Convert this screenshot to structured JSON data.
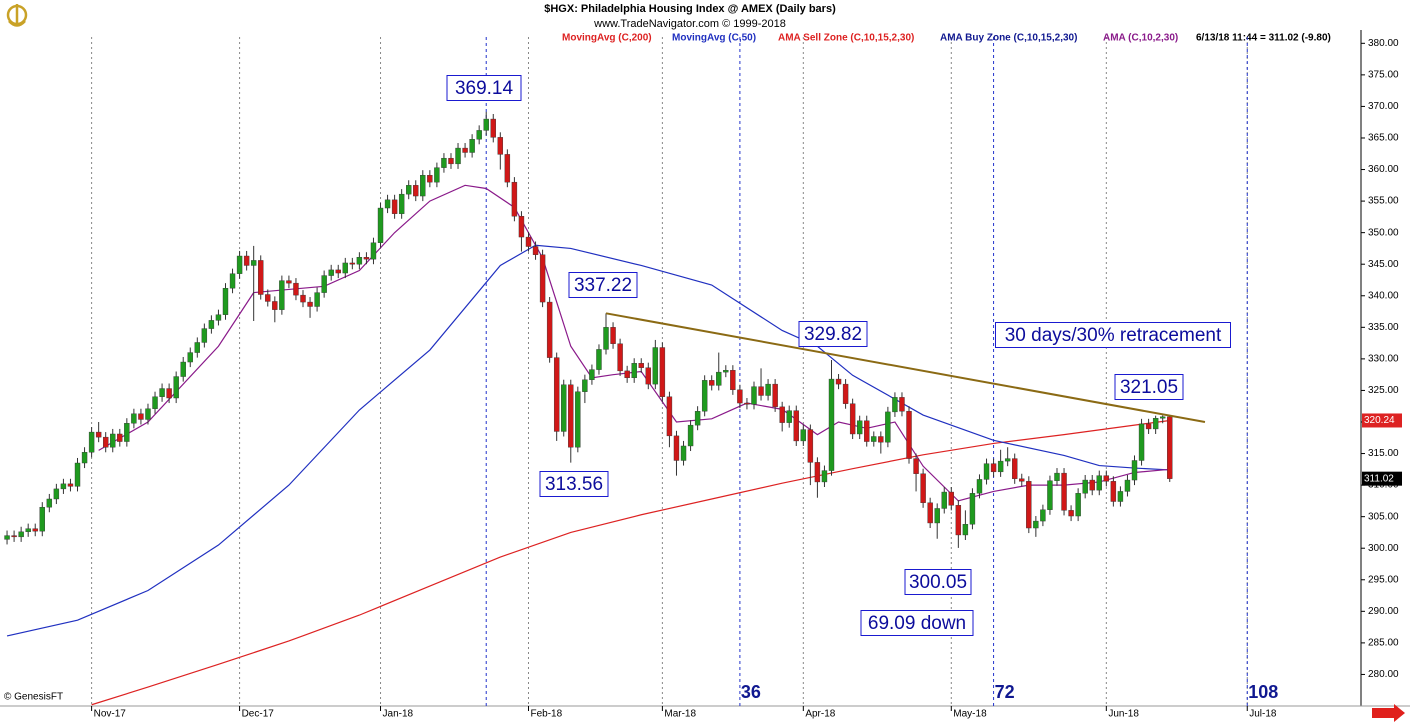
{
  "chart_data": {
    "type": "candlestick",
    "title": "$HGX:  Philadelphia Housing Index @ AMEX  (Daily bars)",
    "subtitle": "www.TradeNavigator.com © 1999-2018",
    "quote": "6/13/18 11:44 = 311.02 (-9.80)",
    "credit": "© GenesisFT",
    "up_color": "#1f9a1f",
    "down_color": "#d01818",
    "open": [
      301.4,
      302.0,
      301.8,
      302.6,
      303.1,
      302.7,
      306.5,
      307.8,
      309.4,
      310.2,
      309.8,
      313.5,
      315.2,
      318.4,
      317.6,
      316.0,
      318.1,
      316.9,
      319.8,
      321.3,
      320.4,
      322.1,
      324.0,
      325.3,
      323.8,
      327.2,
      329.5,
      331.0,
      332.6,
      334.8,
      336.1,
      337.0,
      341.2,
      343.5,
      346.3,
      344.8,
      345.6,
      340.2,
      339.1,
      337.8,
      342.4,
      342.0,
      340.1,
      339.0,
      338.3,
      340.5,
      343.2,
      344.1,
      343.6,
      345.2,
      345.0,
      346.1,
      345.8,
      348.4,
      353.9,
      355.2,
      353.0,
      356.1,
      357.5,
      355.8,
      359.1,
      358.0,
      360.3,
      361.8,
      360.9,
      363.4,
      362.7,
      364.8,
      366.2,
      368.0,
      365.1,
      362.4,
      358.0,
      352.6,
      349.3,
      347.8,
      346.5,
      339.0,
      330.2,
      318.5,
      325.9,
      316.0,
      324.8,
      326.7,
      328.3,
      331.5,
      335.0,
      332.4,
      328.1,
      327.0,
      329.3,
      328.6,
      326.0,
      331.8,
      324.0,
      317.8,
      313.9,
      316.2,
      319.5,
      321.7,
      326.6,
      325.8,
      327.9,
      328.2,
      325.1,
      323.0,
      322.8,
      325.6,
      324.2,
      326.0,
      322.4,
      319.9,
      321.8,
      317.0,
      318.8,
      313.6,
      310.5,
      312.3,
      326.8,
      326.0,
      322.9,
      318.1,
      320.2,
      316.9,
      317.7,
      316.8,
      321.6,
      323.9,
      321.7,
      314.2,
      311.8,
      307.2,
      304.0,
      306.3,
      308.9,
      306.8,
      302.1,
      303.8,
      308.7,
      310.9,
      313.4,
      312.1,
      313.8,
      314.2,
      311.0,
      310.6,
      303.2,
      304.3,
      306.1,
      310.7,
      311.9,
      306.0,
      305.1,
      308.7,
      310.8,
      309.2,
      311.5,
      310.6,
      307.4,
      309.0,
      310.8,
      313.9,
      319.7,
      318.9,
      320.6,
      320.82
    ],
    "high": [
      302.8,
      302.8,
      303.4,
      303.9,
      303.9,
      307.3,
      308.6,
      310.2,
      311.0,
      311.0,
      314.3,
      316.0,
      319.2,
      320.0,
      318.4,
      318.9,
      318.9,
      320.6,
      322.1,
      322.1,
      322.9,
      324.8,
      326.1,
      326.1,
      328.0,
      330.3,
      331.8,
      333.4,
      335.6,
      336.9,
      337.8,
      342.0,
      344.3,
      347.1,
      347.1,
      347.9,
      346.4,
      341.0,
      339.9,
      343.2,
      343.2,
      342.8,
      340.9,
      339.8,
      341.3,
      344.0,
      344.9,
      344.9,
      346.0,
      346.0,
      346.9,
      346.9,
      349.2,
      354.7,
      356.0,
      356.0,
      356.9,
      358.3,
      358.3,
      359.9,
      359.9,
      361.1,
      362.6,
      362.6,
      364.2,
      364.2,
      365.6,
      367.0,
      369.14,
      368.8,
      365.9,
      363.2,
      358.8,
      353.4,
      350.1,
      348.6,
      347.3,
      339.8,
      331.0,
      326.7,
      326.7,
      325.6,
      327.5,
      329.1,
      332.3,
      337.22,
      335.8,
      333.2,
      328.9,
      330.1,
      330.1,
      329.4,
      333.0,
      332.6,
      324.8,
      318.6,
      317.0,
      320.3,
      322.5,
      327.4,
      327.4,
      331.0,
      329.0,
      329.0,
      325.9,
      323.8,
      326.4,
      328.5,
      326.8,
      326.8,
      323.2,
      322.6,
      322.6,
      319.6,
      319.6,
      314.4,
      313.1,
      329.82,
      327.6,
      326.8,
      323.7,
      321.0,
      321.0,
      318.5,
      318.5,
      322.4,
      324.7,
      324.7,
      322.5,
      315.0,
      312.6,
      308.0,
      307.1,
      309.7,
      309.7,
      307.6,
      306.0,
      309.5,
      311.7,
      314.2,
      314.2,
      315.6,
      316.0,
      315.0,
      311.8,
      311.4,
      305.1,
      306.9,
      311.5,
      312.7,
      312.7,
      306.8,
      309.5,
      311.6,
      311.6,
      312.3,
      312.3,
      311.4,
      309.8,
      311.6,
      314.7,
      320.5,
      320.5,
      321.0,
      321.05,
      320.9
    ],
    "low": [
      300.6,
      301.0,
      301.0,
      301.8,
      301.9,
      301.9,
      305.7,
      307.0,
      308.6,
      309.0,
      309.0,
      312.7,
      314.4,
      316.8,
      315.2,
      315.2,
      316.1,
      316.1,
      319.0,
      319.6,
      319.6,
      321.3,
      323.2,
      323.0,
      323.0,
      326.4,
      328.7,
      330.2,
      331.8,
      334.0,
      335.3,
      336.2,
      340.4,
      342.7,
      344.0,
      336.0,
      339.4,
      338.3,
      335.8,
      337.0,
      341.2,
      339.3,
      338.2,
      336.5,
      337.5,
      339.7,
      342.4,
      342.8,
      342.8,
      344.2,
      344.2,
      345.0,
      345.0,
      347.6,
      353.1,
      352.2,
      352.2,
      355.3,
      355.0,
      355.0,
      357.2,
      357.2,
      359.5,
      360.1,
      360.1,
      361.9,
      361.9,
      364.0,
      365.4,
      364.3,
      360.0,
      357.2,
      351.8,
      347.0,
      347.0,
      345.7,
      338.2,
      329.4,
      317.0,
      317.7,
      313.56,
      315.2,
      323.0,
      325.9,
      327.5,
      330.7,
      331.6,
      327.3,
      326.2,
      326.2,
      327.8,
      325.2,
      325.2,
      323.2,
      316.0,
      311.5,
      313.1,
      315.4,
      318.7,
      320.9,
      325.0,
      325.0,
      327.1,
      324.3,
      322.2,
      322.0,
      322.0,
      323.4,
      323.4,
      321.6,
      318.5,
      319.1,
      316.2,
      316.2,
      310.0,
      308.0,
      309.7,
      311.5,
      325.2,
      322.1,
      317.3,
      317.3,
      316.1,
      316.1,
      315.0,
      316.0,
      320.8,
      320.9,
      313.4,
      309.0,
      306.4,
      303.2,
      301.5,
      305.5,
      306.0,
      300.05,
      301.3,
      303.0,
      307.9,
      310.1,
      311.3,
      311.3,
      313.0,
      310.2,
      309.8,
      302.4,
      301.8,
      303.5,
      305.3,
      309.9,
      305.2,
      304.3,
      304.3,
      307.9,
      308.4,
      308.4,
      309.8,
      306.6,
      306.6,
      308.2,
      310.0,
      313.1,
      318.1,
      318.1,
      319.8,
      310.5
    ],
    "close": [
      302.0,
      301.8,
      302.6,
      303.1,
      302.7,
      306.5,
      307.8,
      309.4,
      310.2,
      309.8,
      313.5,
      315.2,
      318.4,
      317.6,
      316.0,
      318.1,
      316.9,
      319.8,
      321.3,
      320.4,
      322.1,
      324.0,
      325.3,
      323.8,
      327.2,
      329.5,
      331.0,
      332.6,
      334.8,
      336.1,
      337.0,
      341.2,
      343.5,
      346.3,
      344.8,
      345.6,
      340.2,
      339.1,
      337.8,
      342.4,
      342.0,
      340.1,
      339.0,
      338.3,
      340.5,
      343.2,
      344.1,
      343.6,
      345.2,
      345.0,
      346.1,
      345.8,
      348.4,
      353.9,
      355.2,
      353.0,
      356.1,
      357.5,
      355.8,
      359.1,
      358.0,
      360.3,
      361.8,
      360.9,
      363.4,
      362.7,
      364.8,
      366.2,
      368.0,
      365.1,
      362.4,
      358.0,
      352.6,
      349.3,
      347.8,
      346.5,
      339.0,
      330.2,
      318.5,
      325.9,
      316.0,
      324.8,
      326.7,
      328.3,
      331.5,
      335.0,
      332.4,
      328.1,
      327.0,
      329.3,
      328.6,
      326.0,
      331.8,
      324.0,
      317.8,
      313.9,
      316.2,
      319.5,
      321.7,
      326.6,
      325.8,
      327.9,
      328.2,
      325.1,
      323.0,
      322.8,
      325.6,
      324.2,
      326.0,
      322.4,
      319.9,
      321.8,
      317.0,
      318.8,
      313.6,
      310.5,
      312.3,
      326.8,
      326.0,
      322.9,
      318.1,
      320.2,
      316.9,
      317.7,
      316.8,
      321.6,
      323.9,
      321.7,
      314.2,
      311.8,
      307.2,
      304.0,
      306.3,
      308.9,
      306.8,
      302.1,
      303.8,
      308.7,
      310.9,
      313.4,
      312.1,
      313.8,
      314.2,
      311.0,
      310.6,
      303.2,
      304.3,
      306.1,
      310.7,
      311.9,
      306.0,
      305.1,
      308.7,
      310.8,
      309.2,
      311.5,
      310.6,
      307.4,
      309.0,
      310.8,
      313.9,
      319.7,
      318.9,
      320.6,
      320.82,
      311.02
    ],
    "series": [
      {
        "name": "MovingAvg (C,200)",
        "color": "#dd2222",
        "x": [
          12,
          20,
          30,
          40,
          50,
          60,
          70,
          80,
          90,
          100,
          110,
          120,
          130,
          140,
          150,
          160,
          165
        ],
        "values": [
          275.2,
          278.0,
          281.6,
          285.3,
          289.4,
          294.0,
          298.6,
          302.5,
          305.3,
          307.8,
          310.3,
          312.6,
          314.8,
          316.6,
          318.0,
          319.5,
          320.24
        ]
      },
      {
        "name": "MovingAvg (C,50)",
        "color": "#2030c0",
        "x": [
          0,
          10,
          20,
          30,
          40,
          50,
          60,
          70,
          75,
          80,
          90,
          100,
          110,
          115,
          120,
          130,
          140,
          150,
          155,
          160,
          165
        ],
        "values": [
          286.1,
          288.6,
          293.3,
          300.5,
          310.0,
          321.9,
          331.4,
          344.8,
          348.0,
          347.5,
          344.8,
          341.7,
          334.5,
          332.0,
          327.4,
          321.1,
          317.1,
          314.7,
          313.1,
          312.7,
          312.4
        ]
      },
      {
        "name": "AMA (C,10,2,30)",
        "color": "#8a1a8a",
        "x": [
          13,
          20,
          30,
          35,
          40,
          45,
          50,
          55,
          60,
          65,
          68,
          72,
          76,
          80,
          83,
          86,
          90,
          95,
          100,
          105,
          110,
          115,
          118,
          122,
          126,
          130,
          135,
          140,
          145,
          150,
          155,
          160,
          165
        ],
        "values": [
          315.5,
          320.0,
          332.0,
          340.5,
          341.0,
          341.5,
          344.0,
          350.0,
          355.0,
          357.5,
          357.0,
          354.0,
          346.0,
          332.0,
          327.0,
          327.5,
          328.0,
          320.0,
          320.5,
          323.0,
          322.0,
          318.0,
          320.0,
          319.0,
          320.0,
          313.0,
          307.5,
          309.0,
          310.0,
          310.0,
          310.5,
          312.0,
          312.5
        ]
      }
    ],
    "other_indicators": [
      {
        "name": "AMA Sell Zone (C,10,15,2,30)",
        "color": "#dd2222"
      },
      {
        "name": "AMA Buy Zone (C,10,15,2,30)",
        "color": "#101890"
      }
    ],
    "trendline": {
      "color": "#8b6a14",
      "x": [
        85,
        170
      ],
      "y": [
        337.22,
        320.0
      ]
    },
    "annotations": [
      "369.14",
      "337.22",
      "329.82",
      "313.56",
      "300.05",
      "69.09 down",
      "321.05",
      "30 days/30% retracement"
    ],
    "price_tags": [
      {
        "value": 320.24,
        "color": "#dd2222"
      },
      {
        "value": 311.02,
        "color": "#000000"
      }
    ],
    "cycle_start": 68,
    "cycle_ticks": [
      {
        "value": 104,
        "label": "36"
      },
      {
        "value": 140,
        "label": "72"
      },
      {
        "value": 176,
        "label": "108"
      }
    ],
    "xlim": [
      -1,
      192
    ],
    "xticks": [
      {
        "value": 12,
        "label": "Nov-17"
      },
      {
        "value": 33,
        "label": "Dec-17"
      },
      {
        "value": 53,
        "label": "Jan-18"
      },
      {
        "value": 74,
        "label": "Feb-18"
      },
      {
        "value": 93,
        "label": "Mar-18"
      },
      {
        "value": 113,
        "label": "Apr-18"
      },
      {
        "value": 134,
        "label": "May-18"
      },
      {
        "value": 156,
        "label": "Jun-18"
      },
      {
        "value": 176,
        "label": "Jul-18"
      }
    ],
    "ylim": [
      275,
      381
    ],
    "yticks": [
      {
        "value": 280,
        "label": "280.00"
      },
      {
        "value": 285,
        "label": "285.00"
      },
      {
        "value": 290,
        "label": "290.00"
      },
      {
        "value": 295,
        "label": "295.00"
      },
      {
        "value": 300,
        "label": "300.00"
      },
      {
        "value": 305,
        "label": "305.00"
      },
      {
        "value": 310,
        "label": "310.00"
      },
      {
        "value": 315,
        "label": "315.00"
      },
      {
        "value": 320,
        "label": "320.00"
      },
      {
        "value": 325,
        "label": "325.00"
      },
      {
        "value": 330,
        "label": "330.00"
      },
      {
        "value": 335,
        "label": "335.00"
      },
      {
        "value": 340,
        "label": "340.00"
      },
      {
        "value": 345,
        "label": "345.00"
      },
      {
        "value": 350,
        "label": "350.00"
      },
      {
        "value": 355,
        "label": "355.00"
      },
      {
        "value": 360,
        "label": "360.00"
      },
      {
        "value": 365,
        "label": "365.00"
      },
      {
        "value": 370,
        "label": "370.00"
      },
      {
        "value": 375,
        "label": "375.00"
      },
      {
        "value": 380,
        "label": "380.00"
      }
    ]
  }
}
